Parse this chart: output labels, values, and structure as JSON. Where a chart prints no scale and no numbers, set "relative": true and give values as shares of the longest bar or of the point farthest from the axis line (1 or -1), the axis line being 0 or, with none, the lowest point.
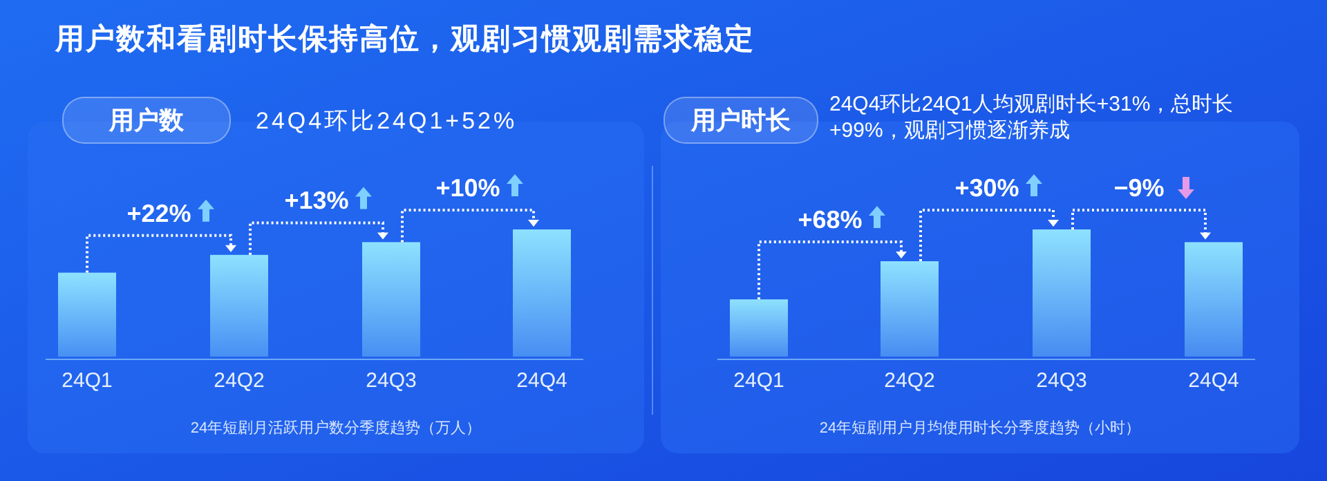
{
  "chart_data": [
    {
      "type": "bar",
      "title": "用户数",
      "subtitle": "24Q4环比24Q1+52%",
      "xlabel": "24年短剧月活跃用户数分季度趋势（万人）",
      "relative": true,
      "categories": [
        "24Q1",
        "24Q2",
        "24Q3",
        "24Q4"
      ],
      "values": [
        0.66,
        0.8,
        0.9,
        1
      ],
      "color": "#8ee1ff",
      "annotations": [
        "用户数和看剧时长保持高位，观剧习惯观剧需求稳定",
        "+22%",
        "+13%",
        "+10%"
      ]
    },
    {
      "type": "bar",
      "title": "用户时长",
      "subtitle": "24Q4环比24Q1人均观剧时长+31%，总时长+99%，观剧习惯逐渐养成",
      "xlabel": "24年短剧用户月均使用时长分季度趋势（小时）",
      "relative": true,
      "categories": [
        "24Q1",
        "24Q2",
        "24Q3",
        "24Q4"
      ],
      "values": [
        0.45,
        0.75,
        1,
        0.9
      ],
      "color": "#8ee1ff",
      "annotations": [
        "+68%",
        "+30%",
        "−9%"
      ]
    }
  ]
}
